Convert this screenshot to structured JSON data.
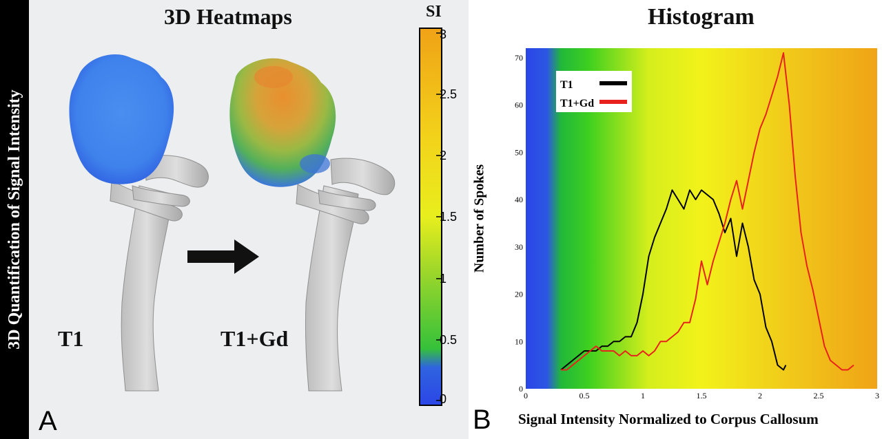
{
  "side_label": "3D Quantification of Signal Intensity",
  "panel_a": {
    "title": "3D Heatmaps",
    "letter": "A",
    "left_label": "T1",
    "right_label": "T1+Gd",
    "colorbar": {
      "label": "SI",
      "ticks": [
        "3",
        "2.5",
        "2",
        "1.5",
        "1",
        "0.5",
        "0"
      ]
    }
  },
  "panel_b": {
    "title": "Histogram",
    "letter": "B"
  },
  "chart_data": {
    "type": "line",
    "title": "Histogram",
    "xlabel": "Signal Intensity Normalized to Corpus Callosum",
    "ylabel": "Number of Spokes",
    "xlim": [
      0,
      3
    ],
    "ylim": [
      0,
      72
    ],
    "xticks": [
      "0",
      "0.5",
      "1",
      "1.5",
      "2",
      "2.5",
      "3"
    ],
    "yticks": [
      "0",
      "10",
      "20",
      "30",
      "40",
      "50",
      "60",
      "70"
    ],
    "legend": "top-left",
    "background_gradient": [
      "#2a46e6",
      "#1fcf28",
      "#f2f21a",
      "#f0a316"
    ],
    "series": [
      {
        "name": "T1",
        "color": "#000000",
        "x": [
          0.3,
          0.35,
          0.4,
          0.45,
          0.5,
          0.55,
          0.6,
          0.65,
          0.7,
          0.75,
          0.8,
          0.85,
          0.9,
          0.95,
          1.0,
          1.05,
          1.1,
          1.15,
          1.2,
          1.25,
          1.3,
          1.35,
          1.4,
          1.45,
          1.5,
          1.55,
          1.6,
          1.65,
          1.7,
          1.75,
          1.8,
          1.85,
          1.9,
          1.95,
          2.0,
          2.05,
          2.1,
          2.15,
          2.2,
          2.22
        ],
        "values": [
          4,
          5,
          6,
          7,
          8,
          8,
          8,
          9,
          9,
          10,
          10,
          11,
          11,
          14,
          20,
          28,
          32,
          35,
          38,
          42,
          40,
          38,
          42,
          40,
          42,
          41,
          40,
          37,
          33,
          36,
          28,
          35,
          30,
          23,
          20,
          13,
          10,
          5,
          4,
          5
        ]
      },
      {
        "name": "T1+Gd",
        "color": "#e8211c",
        "x": [
          0.3,
          0.35,
          0.4,
          0.45,
          0.5,
          0.55,
          0.6,
          0.65,
          0.7,
          0.75,
          0.8,
          0.85,
          0.9,
          0.95,
          1.0,
          1.05,
          1.1,
          1.15,
          1.2,
          1.25,
          1.3,
          1.35,
          1.4,
          1.45,
          1.5,
          1.55,
          1.6,
          1.65,
          1.7,
          1.75,
          1.8,
          1.85,
          1.9,
          1.95,
          2.0,
          2.05,
          2.1,
          2.15,
          2.2,
          2.25,
          2.3,
          2.35,
          2.4,
          2.45,
          2.5,
          2.55,
          2.6,
          2.65,
          2.7,
          2.75,
          2.8
        ],
        "values": [
          4,
          4,
          5,
          6,
          7,
          8,
          9,
          8,
          8,
          8,
          7,
          8,
          7,
          7,
          8,
          7,
          8,
          10,
          10,
          11,
          12,
          14,
          14,
          19,
          27,
          22,
          27,
          31,
          35,
          40,
          44,
          38,
          44,
          50,
          55,
          58,
          62,
          66,
          71,
          60,
          45,
          33,
          26,
          21,
          15,
          9,
          6,
          5,
          4,
          4,
          5
        ]
      }
    ]
  }
}
